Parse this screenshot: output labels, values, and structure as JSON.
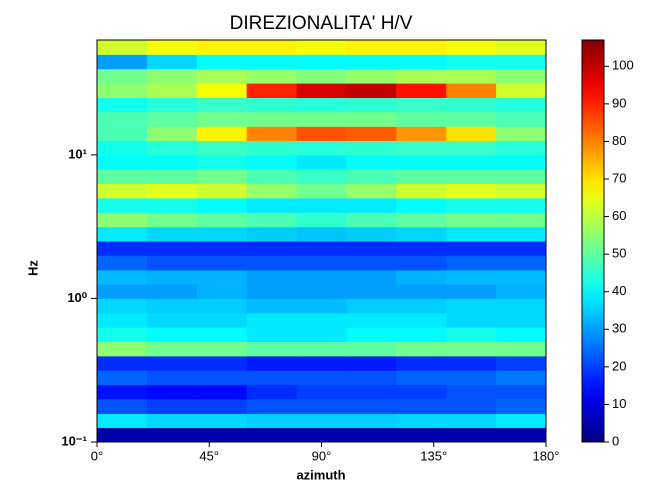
{
  "chart_data": {
    "type": "heatmap",
    "title": "DIREZIONALITA' H/V",
    "x_label": "azimuth",
    "y_label": "Hz",
    "colormap": "jet",
    "y_log": true,
    "xlim": [
      0,
      180
    ],
    "ylim": [
      0.1,
      63.1
    ],
    "xticks": [
      {
        "value": 0,
        "label": "0°"
      },
      {
        "value": 45,
        "label": "45°"
      },
      {
        "value": 90,
        "label": "90°"
      },
      {
        "value": 135,
        "label": "135°"
      },
      {
        "value": 180,
        "label": "180°"
      }
    ],
    "yticks": [
      {
        "value": 0.1,
        "label": "10⁻¹"
      },
      {
        "value": 1,
        "label": "10⁰"
      },
      {
        "value": 10,
        "label": "10¹"
      }
    ],
    "x_edges": [
      0,
      20,
      40,
      60,
      80,
      100,
      120,
      140,
      160,
      180
    ],
    "y_edges": [
      0.1,
      0.126,
      0.158,
      0.2,
      0.251,
      0.316,
      0.398,
      0.501,
      0.631,
      0.794,
      1,
      1.26,
      1.58,
      2,
      2.51,
      3.16,
      3.98,
      5.01,
      6.31,
      7.94,
      10,
      12.6,
      15.8,
      20,
      25.1,
      31.6,
      39.8,
      50.1,
      63.1
    ],
    "z": [
      [
        4,
        4,
        4,
        4,
        4,
        4,
        4,
        4,
        4
      ],
      [
        38,
        36,
        36,
        35,
        35,
        35,
        36,
        36,
        38
      ],
      [
        22,
        20,
        20,
        22,
        22,
        22,
        22,
        22,
        24
      ],
      [
        15,
        14,
        14,
        18,
        20,
        20,
        20,
        22,
        22
      ],
      [
        24,
        22,
        22,
        22,
        22,
        22,
        24,
        24,
        26
      ],
      [
        18,
        18,
        18,
        16,
        16,
        16,
        18,
        18,
        20
      ],
      [
        55,
        52,
        52,
        50,
        50,
        50,
        52,
        52,
        52
      ],
      [
        42,
        40,
        40,
        38,
        38,
        40,
        40,
        42,
        40
      ],
      [
        38,
        36,
        36,
        38,
        38,
        38,
        38,
        36,
        36
      ],
      [
        36,
        35,
        35,
        33,
        33,
        35,
        35,
        36,
        36
      ],
      [
        30,
        30,
        32,
        30,
        30,
        30,
        30,
        30,
        32
      ],
      [
        33,
        32,
        32,
        30,
        30,
        30,
        32,
        33,
        33
      ],
      [
        24,
        22,
        22,
        22,
        22,
        22,
        22,
        24,
        24
      ],
      [
        18,
        18,
        18,
        18,
        18,
        18,
        18,
        18,
        18
      ],
      [
        38,
        36,
        36,
        35,
        34,
        35,
        36,
        38,
        38
      ],
      [
        55,
        52,
        50,
        48,
        45,
        48,
        50,
        52,
        52
      ],
      [
        42,
        42,
        40,
        38,
        38,
        38,
        40,
        42,
        42
      ],
      [
        62,
        64,
        62,
        56,
        52,
        56,
        62,
        64,
        62
      ],
      [
        50,
        50,
        52,
        48,
        46,
        48,
        50,
        50,
        50
      ],
      [
        40,
        40,
        42,
        40,
        38,
        40,
        40,
        40,
        40
      ],
      [
        42,
        44,
        46,
        45,
        44,
        45,
        46,
        46,
        44
      ],
      [
        48,
        55,
        68,
        80,
        85,
        84,
        78,
        70,
        55
      ],
      [
        48,
        50,
        52,
        52,
        52,
        52,
        50,
        50,
        48
      ],
      [
        42,
        44,
        46,
        45,
        44,
        45,
        46,
        45,
        44
      ],
      [
        55,
        58,
        66,
        90,
        98,
        100,
        92,
        80,
        62
      ],
      [
        52,
        55,
        58,
        56,
        54,
        56,
        58,
        58,
        55
      ],
      [
        30,
        36,
        40,
        40,
        40,
        40,
        40,
        42,
        42
      ],
      [
        62,
        66,
        68,
        68,
        66,
        68,
        68,
        66,
        64
      ]
    ],
    "colorbar": {
      "lim": [
        0,
        107
      ],
      "ticks": [
        0,
        10,
        20,
        30,
        40,
        50,
        60,
        70,
        80,
        90,
        100
      ]
    }
  }
}
